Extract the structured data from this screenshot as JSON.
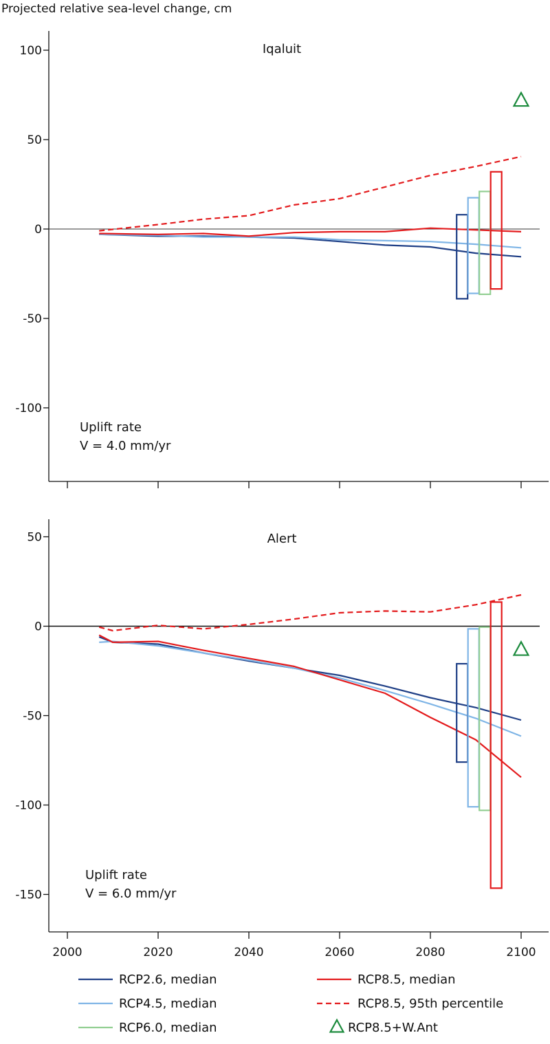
{
  "ylabel": "Projected relative sea-level change, cm",
  "colors": {
    "rcp26": "#1f3f86",
    "rcp45": "#7fb5e6",
    "rcp60": "#93cf93",
    "rcp85": "#e31a1c",
    "wantarctic": "#1b8a3c"
  },
  "chart_data": [
    {
      "type": "line",
      "title": "Iqaluit",
      "annotation": [
        "Uplift rate",
        "V = 4.0 mm/yr"
      ],
      "ylim": [
        -140,
        115
      ],
      "yticks": [
        100,
        50,
        0,
        -50,
        -100
      ],
      "xlim": [
        1995,
        2105
      ],
      "xticks": [
        2000,
        2020,
        2040,
        2060,
        2080,
        2100
      ],
      "series": [
        {
          "name": "RCP2.6, median",
          "key": "rcp26",
          "dash": false,
          "x": [
            2007,
            2020,
            2030,
            2040,
            2050,
            2060,
            2070,
            2080,
            2090,
            2100
          ],
          "y": [
            -3,
            -4,
            -4,
            -4.5,
            -5,
            -7,
            -9,
            -10,
            -13.5,
            -15.5
          ]
        },
        {
          "name": "RCP4.5, median",
          "key": "rcp45",
          "dash": false,
          "x": [
            2007,
            2020,
            2030,
            2040,
            2050,
            2060,
            2070,
            2080,
            2090,
            2100
          ],
          "y": [
            -3,
            -3.5,
            -4.5,
            -4.5,
            -4.5,
            -6,
            -6.5,
            -7,
            -8.5,
            -10.5
          ]
        },
        {
          "name": "RCP8.5, median",
          "key": "rcp85",
          "dash": false,
          "x": [
            2007,
            2020,
            2030,
            2040,
            2050,
            2060,
            2070,
            2080,
            2090,
            2100
          ],
          "y": [
            -2.5,
            -3,
            -2.5,
            -4,
            -2,
            -1.5,
            -1.5,
            0.5,
            -0.5,
            -1.5
          ]
        },
        {
          "name": "RCP8.5, 95th percentile",
          "key": "rcp85",
          "dash": true,
          "x": [
            2007,
            2020,
            2030,
            2040,
            2050,
            2060,
            2070,
            2080,
            2090,
            2100
          ],
          "y": [
            -1,
            2.5,
            5.5,
            7.5,
            13.5,
            17,
            23.5,
            30,
            35,
            40.5
          ]
        }
      ],
      "ranges": [
        {
          "key": "rcp26",
          "x": 2087,
          "low": -39,
          "high": 8
        },
        {
          "key": "rcp45",
          "x": 2089.5,
          "low": -36,
          "high": 17.5
        },
        {
          "key": "rcp60",
          "x": 2092,
          "low": -36.5,
          "high": 21
        },
        {
          "key": "rcp85",
          "x": 2094.5,
          "low": -33.5,
          "high": 32
        }
      ],
      "markers": [
        {
          "key": "wantarctic",
          "x": 2100,
          "y": 72
        }
      ]
    },
    {
      "type": "line",
      "title": "Alert",
      "annotation": [
        "Uplift rate",
        "V = 6.0 mm/yr"
      ],
      "ylim": [
        -170,
        65
      ],
      "yticks": [
        50,
        0,
        -50,
        -100,
        -150
      ],
      "xlim": [
        1995,
        2105
      ],
      "xticks": [
        2000,
        2020,
        2040,
        2060,
        2080,
        2100
      ],
      "series": [
        {
          "name": "RCP2.6, median",
          "key": "rcp26",
          "dash": false,
          "x": [
            2007,
            2010,
            2020,
            2030,
            2040,
            2050,
            2060,
            2070,
            2080,
            2090,
            2100
          ],
          "y": [
            -6,
            -9,
            -10,
            -15,
            -19.5,
            -23.5,
            -27.5,
            -33.5,
            -40,
            -45.5,
            -52.5
          ]
        },
        {
          "name": "RCP4.5, median",
          "key": "rcp45",
          "dash": false,
          "x": [
            2007,
            2010,
            2020,
            2030,
            2040,
            2050,
            2060,
            2070,
            2080,
            2090,
            2100
          ],
          "y": [
            -9,
            -8.5,
            -11,
            -15,
            -19,
            -23.5,
            -29,
            -36,
            -43.5,
            -51.5,
            -61.5
          ]
        },
        {
          "name": "RCP8.5, median",
          "key": "rcp85",
          "dash": false,
          "x": [
            2007,
            2010,
            2020,
            2030,
            2040,
            2050,
            2060,
            2070,
            2080,
            2090,
            2100
          ],
          "y": [
            -5,
            -9,
            -8.5,
            -13.5,
            -18,
            -22.5,
            -30,
            -37.5,
            -51,
            -63.5,
            -84.5
          ]
        },
        {
          "name": "RCP8.5, 95th percentile",
          "key": "rcp85",
          "dash": true,
          "x": [
            2007,
            2010,
            2020,
            2030,
            2040,
            2050,
            2060,
            2070,
            2080,
            2090,
            2100
          ],
          "y": [
            -0.5,
            -2.5,
            0.5,
            -1.5,
            1,
            4,
            7.5,
            8.5,
            8,
            12,
            17.5
          ]
        }
      ],
      "ranges": [
        {
          "key": "rcp26",
          "x": 2087,
          "low": -76,
          "high": -21
        },
        {
          "key": "rcp45",
          "x": 2089.5,
          "low": -101,
          "high": -1.5
        },
        {
          "key": "rcp60",
          "x": 2092,
          "low": -103,
          "high": -0.5
        },
        {
          "key": "rcp85",
          "x": 2094.5,
          "low": -146.5,
          "high": 13.5
        }
      ],
      "markers": [
        {
          "key": "wantarctic",
          "x": 2100,
          "y": -13
        }
      ]
    }
  ],
  "legend": [
    {
      "label": "RCP2.6, median",
      "key": "rcp26",
      "style": "line"
    },
    {
      "label": "RCP4.5, median",
      "key": "rcp45",
      "style": "line"
    },
    {
      "label": "RCP6.0, median",
      "key": "rcp60",
      "style": "line"
    },
    {
      "label": "RCP8.5, median",
      "key": "rcp85",
      "style": "line"
    },
    {
      "label": "RCP8.5, 95th percentile",
      "key": "rcp85",
      "style": "dash"
    },
    {
      "label": "RCP8.5+W.Ant",
      "key": "wantarctic",
      "style": "triangle"
    }
  ]
}
